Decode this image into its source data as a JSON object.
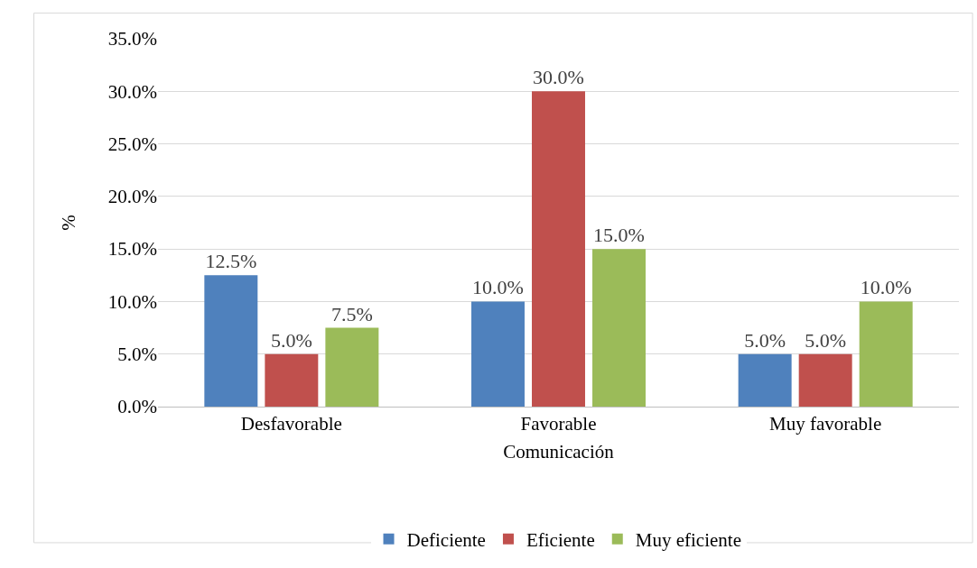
{
  "chart_data": {
    "type": "bar",
    "xlabel": "Comunicación",
    "ylabel": "%",
    "categories": [
      "Desfavorable",
      "Favorable",
      "Muy favorable"
    ],
    "series": [
      {
        "name": "Deficiente",
        "color": "#4f81bd",
        "values": [
          12.5,
          10.0,
          5.0
        ],
        "value_labels": [
          "12.5%",
          "10.0%",
          "5.0%"
        ]
      },
      {
        "name": "Eficiente",
        "color": "#c0504d",
        "values": [
          5.0,
          30.0,
          5.0
        ],
        "value_labels": [
          "5.0%",
          "30.0%",
          "5.0%"
        ]
      },
      {
        "name": "Muy eficiente",
        "color": "#9bbb59",
        "values": [
          7.5,
          15.0,
          10.0
        ],
        "value_labels": [
          "7.5%",
          "15.0%",
          "10.0%"
        ]
      }
    ],
    "ylim": [
      0,
      35
    ],
    "yticks": [
      {
        "value": 0,
        "label": "0.0%"
      },
      {
        "value": 5,
        "label": "5.0%"
      },
      {
        "value": 10,
        "label": "10.0%"
      },
      {
        "value": 15,
        "label": "15.0%"
      },
      {
        "value": 20,
        "label": "20.0%"
      },
      {
        "value": 25,
        "label": "25.0%"
      },
      {
        "value": 30,
        "label": "30.0%"
      },
      {
        "value": 35,
        "label": "35.0%"
      }
    ],
    "grid": "y",
    "legend": "bottom"
  }
}
